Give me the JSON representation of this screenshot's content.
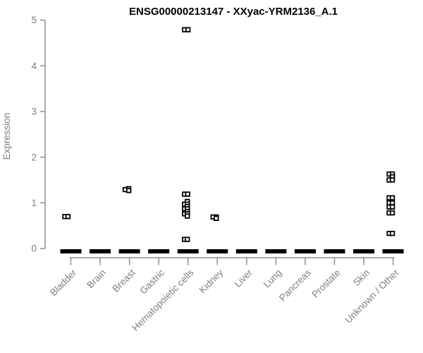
{
  "chart_data": {
    "type": "scatter",
    "subtype": "strip-plot",
    "title": "ENSG00000213147 - XXyac-YRM2136_A.1",
    "xlabel": "",
    "ylabel": "Expression",
    "ylim": [
      0,
      5
    ],
    "yticks": [
      "0",
      "1",
      "2",
      "3",
      "4",
      "5"
    ],
    "grid": false,
    "legend_position": "none",
    "categories": [
      "Bladder",
      "Brain",
      "Breast",
      "Gastric",
      "Hematopoietic cells",
      "Kidney",
      "Liver",
      "Lung",
      "Pancreas",
      "Prostate",
      "Skin",
      "Unknown / Other"
    ],
    "zero_cluster_categories": [
      "Bladder",
      "Brain",
      "Breast",
      "Gastric",
      "Hematopoietic cells",
      "Kidney",
      "Liver",
      "Lung",
      "Pancreas",
      "Prostate",
      "Skin",
      "Unknown / Other"
    ],
    "points_note": "each point is [expression_value, pixel_jitter_dx]; every category additionally has a dense cluster of samples at expression 0 rendered as a solid bar",
    "points": {
      "Bladder": [
        [
          0.7,
          -8.5
        ],
        [
          0.7,
          -4
        ]
      ],
      "Brain": [],
      "Breast": [
        [
          1.29,
          -6
        ],
        [
          1.31,
          -1
        ],
        [
          1.27,
          -1
        ]
      ],
      "Gastric": [],
      "Hematopoietic cells": [
        [
          4.79,
          -5
        ],
        [
          4.79,
          0
        ],
        [
          1.19,
          -5
        ],
        [
          1.19,
          -0.5
        ],
        [
          1.03,
          -1
        ],
        [
          0.97,
          -5
        ],
        [
          0.97,
          -1
        ],
        [
          0.92,
          -1
        ],
        [
          0.87,
          -5
        ],
        [
          0.87,
          -1
        ],
        [
          0.81,
          -1
        ],
        [
          0.76,
          -5
        ],
        [
          0.76,
          -1
        ],
        [
          0.71,
          -1
        ],
        [
          0.2,
          -5
        ],
        [
          0.2,
          -1
        ]
      ],
      "Kidney": [
        [
          0.69,
          -6
        ],
        [
          0.69,
          -1.5
        ],
        [
          0.66,
          -1.5
        ]
      ],
      "Liver": [],
      "Lung": [],
      "Pancreas": [],
      "Prostate": [],
      "Skin": [],
      "Unknown / Other": [
        [
          1.63,
          -5.5
        ],
        [
          1.63,
          -1
        ],
        [
          1.57,
          -1
        ],
        [
          1.5,
          -5.5
        ],
        [
          1.5,
          -1
        ],
        [
          1.11,
          -5.5
        ],
        [
          1.11,
          -1
        ],
        [
          1.0,
          -5.5
        ],
        [
          1.0,
          -1
        ],
        [
          0.91,
          -5.5
        ],
        [
          0.91,
          -1
        ],
        [
          0.78,
          -5.5
        ],
        [
          0.78,
          -1
        ],
        [
          0.33,
          -5.5
        ],
        [
          0.33,
          -1
        ]
      ]
    },
    "marker": "open-square",
    "colors": {
      "points": "#000000",
      "zero_bar": "#000000",
      "axis_lines": "#909090",
      "axis_text": "#7f7f7f",
      "title_text": "#000000",
      "background": "#ffffff"
    }
  }
}
